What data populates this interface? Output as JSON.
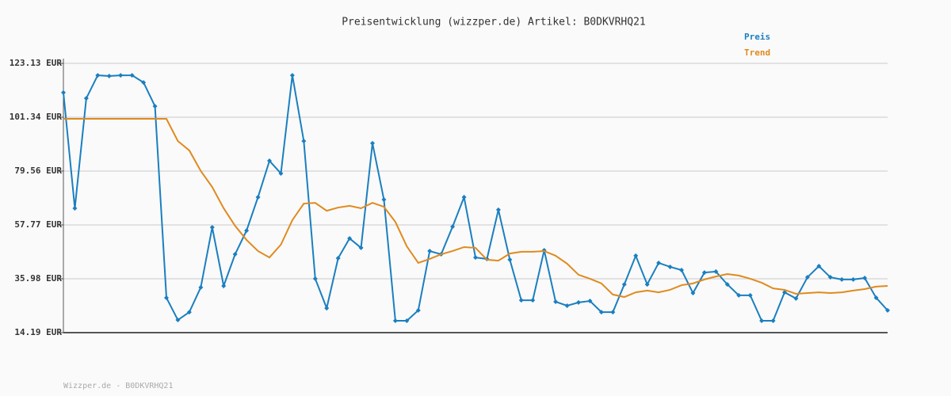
{
  "chart_data": {
    "type": "line",
    "title": "Preisentwicklung (wizzper.de) Artikel: B0DKVRHQ21",
    "footer": "Wizzper.de - B0DKVRHQ21",
    "ylim": [
      14.19,
      123.13
    ],
    "yticks": [
      {
        "value": 14.19,
        "label": "14.19 EUR"
      },
      {
        "value": 35.98,
        "label": "35.98 EUR"
      },
      {
        "value": 57.77,
        "label": "57.77 EUR"
      },
      {
        "value": 79.56,
        "label": "79.56 EUR"
      },
      {
        "value": 101.34,
        "label": "101.34 EUR"
      },
      {
        "value": 123.13,
        "label": "123.13 EUR"
      }
    ],
    "grid": true,
    "series": [
      {
        "name": "Preis",
        "color": "#1a7fc0",
        "markers": true,
        "values": [
          111.3,
          64.5,
          109.0,
          118.3,
          118.0,
          118.3,
          118.3,
          115.4,
          105.8,
          28.3,
          19.3,
          22.5,
          32.5,
          56.8,
          33.1,
          45.9,
          55.5,
          69.0,
          83.7,
          78.6,
          118.3,
          91.7,
          36.0,
          24.1,
          44.3,
          52.3,
          48.5,
          90.8,
          68.0,
          19.0,
          19.0,
          23.2,
          47.2,
          45.9,
          57.1,
          69.0,
          44.6,
          44.0,
          63.9,
          43.7,
          27.3,
          27.3,
          47.5,
          26.7,
          25.1,
          26.4,
          27.0,
          22.5,
          22.5,
          33.7,
          45.3,
          33.7,
          42.4,
          40.8,
          39.5,
          30.2,
          38.5,
          38.9,
          33.7,
          29.3,
          29.3,
          19.0,
          19.0,
          30.5,
          28.0,
          36.6,
          41.1,
          36.6,
          35.7,
          35.7,
          36.3,
          28.3,
          23.2
        ]
      },
      {
        "name": "Trend",
        "color": "#e08a1e",
        "markers": false,
        "values": [
          100.7,
          100.7,
          100.7,
          100.7,
          100.7,
          100.7,
          100.7,
          100.7,
          100.7,
          100.7,
          91.7,
          87.9,
          79.6,
          73.1,
          64.5,
          57.4,
          51.7,
          47.2,
          44.6,
          49.8,
          59.7,
          66.4,
          66.7,
          63.5,
          64.8,
          65.5,
          64.5,
          66.7,
          65.1,
          59.0,
          49.1,
          42.4,
          44.0,
          45.9,
          47.2,
          48.8,
          48.5,
          43.7,
          43.3,
          46.2,
          46.9,
          46.9,
          47.2,
          45.3,
          42.1,
          37.6,
          36.0,
          34.1,
          29.6,
          28.6,
          30.5,
          31.2,
          30.5,
          31.5,
          33.4,
          34.1,
          35.7,
          36.9,
          37.9,
          37.3,
          36.0,
          34.4,
          32.1,
          31.5,
          29.9,
          30.2,
          30.5,
          30.2,
          30.5,
          31.2,
          31.8,
          32.8,
          33.1
        ]
      }
    ]
  }
}
